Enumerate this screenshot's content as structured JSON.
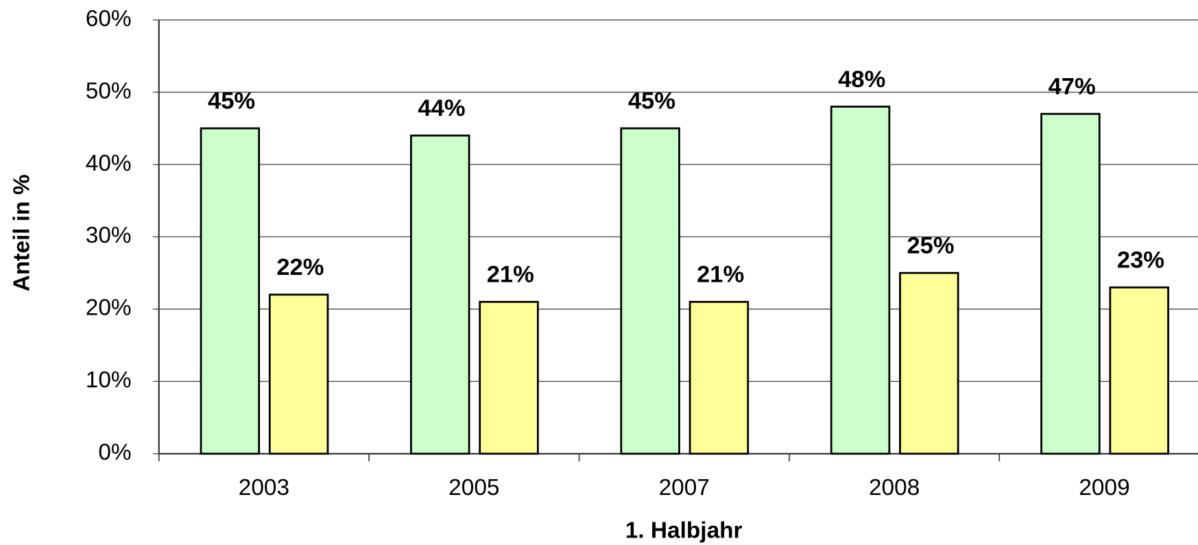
{
  "chart_data": {
    "type": "bar",
    "categories": [
      "2003",
      "2005",
      "2007",
      "2008",
      "2009"
    ],
    "series": [
      {
        "color": "#ccffcc",
        "values": [
          45,
          44,
          45,
          48,
          47
        ],
        "value_labels": [
          "45%",
          "44%",
          "45%",
          "48%",
          "47%"
        ]
      },
      {
        "color": "#ffff99",
        "values": [
          22,
          21,
          21,
          25,
          23
        ],
        "value_labels": [
          "22%",
          "21%",
          "21%",
          "25%",
          "23%"
        ]
      }
    ],
    "ylim": [
      0,
      60
    ],
    "yticks": [
      {
        "value": 0,
        "label": "0%"
      },
      {
        "value": 10,
        "label": "10%"
      },
      {
        "value": 20,
        "label": "20%"
      },
      {
        "value": 30,
        "label": "30%"
      },
      {
        "value": 40,
        "label": "40%"
      },
      {
        "value": 50,
        "label": "50%"
      },
      {
        "value": 60,
        "label": "60%"
      }
    ],
    "grid": true,
    "xlabel": "1. Halbjahr",
    "ylabel": "Anteil in %"
  }
}
